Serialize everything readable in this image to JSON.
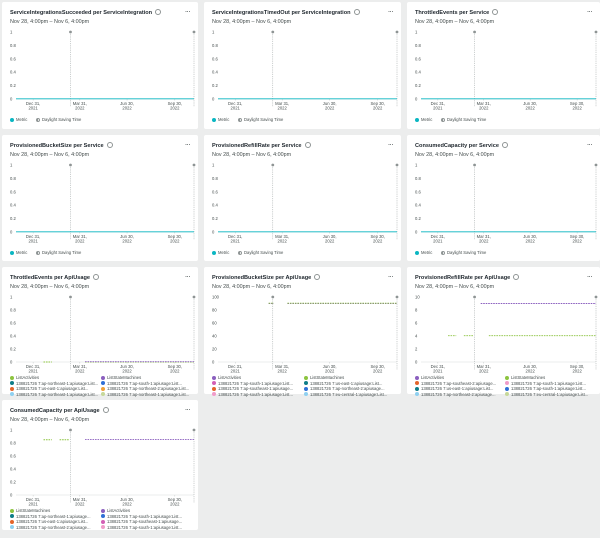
{
  "x_ticks": [
    {
      "lines": [
        "Dec 31,",
        "2021"
      ]
    },
    {
      "lines": [
        "Mar 31,",
        "2022"
      ]
    },
    {
      "lines": [
        "Jun 30,",
        "2022"
      ]
    },
    {
      "lines": [
        "Sep 30,",
        "2022"
      ]
    }
  ],
  "dst_label": "Daylight Saving Time",
  "menu_glyph": "...",
  "cards": [
    {
      "title": "ServiceIntegrationsSucceeded per ServiceIntegration",
      "subtitle": "Nov 28, 4:00pm – Nov 6, 4:00pm",
      "y_ticks": [
        "1",
        "0.8",
        "0.6",
        "0.4",
        "0.2",
        "0"
      ],
      "legend": [
        {
          "label": "Metric",
          "color": "#0ab6c2"
        }
      ],
      "show_dst": true
    },
    {
      "title": "ServiceIntegrationsTimedOut per ServiceIntegration",
      "subtitle": "Nov 28, 4:00pm – Nov 6, 4:00pm",
      "y_ticks": [
        "1",
        "0.8",
        "0.6",
        "0.4",
        "0.2",
        "0"
      ],
      "legend": [
        {
          "label": "Metric",
          "color": "#0ab6c2"
        }
      ],
      "show_dst": true
    },
    {
      "title": "ThrottledEvents per Service",
      "subtitle": "Nov 28, 4:00pm – Nov 6, 4:00pm",
      "y_ticks": [
        "1",
        "0.8",
        "0.6",
        "0.4",
        "0.2",
        "0"
      ],
      "legend": [
        {
          "label": "Metric",
          "color": "#0ab6c2"
        }
      ],
      "show_dst": true
    },
    {
      "title": "ProvisionedBucketSize per Service",
      "subtitle": "Nov 28, 4:00pm – Nov 6, 4:00pm",
      "y_ticks": [
        "1",
        "0.8",
        "0.6",
        "0.4",
        "0.2",
        "0"
      ],
      "legend": [
        {
          "label": "Metric",
          "color": "#0ab6c2"
        }
      ],
      "show_dst": true
    },
    {
      "title": "ProvisionedRefillRate per Service",
      "subtitle": "Nov 28, 4:00pm – Nov 6, 4:00pm",
      "y_ticks": [
        "1",
        "0.8",
        "0.6",
        "0.4",
        "0.2",
        "0"
      ],
      "legend": [
        {
          "label": "Metric",
          "color": "#0ab6c2"
        }
      ],
      "show_dst": true
    },
    {
      "title": "ConsumedCapacity per Service",
      "subtitle": "Nov 28, 4:00pm – Nov 6, 4:00pm",
      "y_ticks": [
        "1",
        "0.8",
        "0.6",
        "0.4",
        "0.2",
        "0"
      ],
      "legend": [
        {
          "label": "Metric",
          "color": "#0ab6c2"
        }
      ],
      "show_dst": true
    },
    {
      "title": "ThrottledEvents per ApiUsage",
      "subtitle": "Nov 28, 4:00pm – Nov 6, 4:00pm",
      "y_ticks": [
        "1",
        "0.8",
        "0.6",
        "0.4",
        "0.2",
        "0"
      ],
      "legend": [
        {
          "label": "ListActivities",
          "color": "#8cc43f"
        },
        {
          "label": "ListStateMachines",
          "color": "#8b5fbf"
        },
        {
          "label": "138821726 7:ap-northeast-1:apiusage:List...",
          "color": "#0e7d88"
        },
        {
          "label": "138821726 7:ap-south-1:apiusage:List...",
          "color": "#2f6fd6"
        },
        {
          "label": "138821726 7:us-east-1:apiusage:List...",
          "color": "#e4652b"
        },
        {
          "label": "138821726 7:ap-northeast-2:apiusage:List...",
          "color": "#f0a13a"
        },
        {
          "label": "138821726 7:ap-northeast-1:apiusage:List...",
          "color": "#8fd0f0"
        },
        {
          "label": "138821726 7:ap-northeast-1:apiusage:List...",
          "color": "#c6d89a"
        }
      ],
      "show_dst": false
    },
    {
      "title": "ProvisionedBucketSize per ApiUsage",
      "subtitle": "Nov 28, 4:00pm – Nov 6, 4:00pm",
      "y_ticks": [
        "100",
        "80",
        "60",
        "40",
        "20",
        "0"
      ],
      "legend": [
        {
          "label": "ListActivities",
          "color": "#8b5fbf"
        },
        {
          "label": "ListStateMachines",
          "color": "#8cc43f"
        },
        {
          "label": "138821726 7:ap-south-1:apiusage:List...",
          "color": "#d35fb5"
        },
        {
          "label": "138821726 7:us-east-1:apiusage:List...",
          "color": "#0e7d88"
        },
        {
          "label": "138821726 7:ap-southeast-1:apiusage...",
          "color": "#e4652b"
        },
        {
          "label": "138821726 7:ap-northeast-2:apiusage...",
          "color": "#2f6fd6"
        },
        {
          "label": "138821726 7:ap-south-1:apiusage:List...",
          "color": "#f09cc9"
        },
        {
          "label": "138821726 7:eu-central-1:apiusage:List...",
          "color": "#8fd0f0"
        }
      ],
      "show_dst": false
    },
    {
      "title": "ProvisionedRefillRate per ApiUsage",
      "subtitle": "Nov 28, 4:00pm – Nov 6, 4:00pm",
      "y_ticks": [
        "10",
        "8",
        "6",
        "4",
        "2",
        "0"
      ],
      "legend": [
        {
          "label": "ListActivities",
          "color": "#8b5fbf"
        },
        {
          "label": "ListStateMachines",
          "color": "#8cc43f"
        },
        {
          "label": "138821726 7:ap-southeast-2:apiusage...",
          "color": "#e4652b"
        },
        {
          "label": "138821726 7:ap-south-1:apiusage:List...",
          "color": "#f09cc9"
        },
        {
          "label": "138821726 7:us-east-1:apiusage:List...",
          "color": "#0e7d88"
        },
        {
          "label": "138821726 7:ap-south-1:apiusage:List...",
          "color": "#2f6fd6"
        },
        {
          "label": "138821726 7:ap-northeast-2:apiusage...",
          "color": "#8fd0f0"
        },
        {
          "label": "138821726 7:eu-central-1:apiusage:List...",
          "color": "#c6d89a"
        }
      ],
      "show_dst": false
    },
    {
      "title": "ConsumedCapacity per ApiUsage",
      "subtitle": "Nov 28, 4:00pm – Nov 6, 4:00pm",
      "y_ticks": [
        "1",
        "0.8",
        "0.6",
        "0.4",
        "0.2",
        "0"
      ],
      "legend": [
        {
          "label": "ListStateMachines",
          "color": "#8cc43f"
        },
        {
          "label": "ListActivities",
          "color": "#8b5fbf"
        },
        {
          "label": "138821726 7:ap-northeast-1:apiusage...",
          "color": "#0e7d88"
        },
        {
          "label": "138821726 7:ap-south-1:apiusage:List...",
          "color": "#2f6fd6"
        },
        {
          "label": "138821726 7:us-east-1:apiusage:List...",
          "color": "#e4652b"
        },
        {
          "label": "138821726 7:ap-southeast-1:apiusage...",
          "color": "#d35fb5"
        },
        {
          "label": "138821726 7:ap-northeast-2:apiusage...",
          "color": "#8fd0f0"
        },
        {
          "label": "138821726 7:ap-south-1:apiusage:List...",
          "color": "#f09cc9"
        }
      ],
      "show_dst": false
    }
  ],
  "chart_data": [
    {
      "type": "line",
      "title": "ServiceIntegrationsSucceeded per ServiceIntegration",
      "ylim": [
        0,
        1
      ],
      "series": [
        {
          "name": "Metric",
          "x": [
            "2021-11-28",
            "2022-11-06"
          ],
          "y": [
            0,
            0
          ]
        }
      ]
    },
    {
      "type": "line",
      "title": "ServiceIntegrationsTimedOut per ServiceIntegration",
      "ylim": [
        0,
        1
      ],
      "series": [
        {
          "name": "Metric",
          "x": [
            "2021-11-28",
            "2022-11-06"
          ],
          "y": [
            0,
            0
          ]
        }
      ]
    },
    {
      "type": "line",
      "title": "ThrottledEvents per Service",
      "ylim": [
        0,
        1
      ],
      "series": [
        {
          "name": "Metric",
          "x": [
            "2021-11-28",
            "2022-11-06"
          ],
          "y": [
            0,
            0
          ]
        }
      ]
    },
    {
      "type": "line",
      "title": "ProvisionedBucketSize per Service",
      "ylim": [
        0,
        1
      ],
      "series": [
        {
          "name": "Metric",
          "x": [
            "2021-11-28",
            "2022-11-06"
          ],
          "y": [
            0,
            0
          ]
        }
      ]
    },
    {
      "type": "line",
      "title": "ProvisionedRefillRate per Service",
      "ylim": [
        0,
        1
      ],
      "series": [
        {
          "name": "Metric",
          "x": [
            "2021-11-28",
            "2022-11-06"
          ],
          "y": [
            0,
            0
          ]
        }
      ]
    },
    {
      "type": "line",
      "title": "ConsumedCapacity per Service",
      "ylim": [
        0,
        1
      ],
      "series": [
        {
          "name": "Metric",
          "x": [
            "2021-11-28",
            "2022-11-06"
          ],
          "y": [
            0,
            0
          ]
        }
      ]
    },
    {
      "type": "line",
      "title": "ThrottledEvents per ApiUsage",
      "ylim": [
        0,
        1
      ],
      "series": [
        {
          "name": "ListActivities",
          "segments": [
            [
              "2022-01-20",
              "2022-02-05",
              0
            ],
            [
              "2022-04-10",
              "2022-11-06",
              0
            ]
          ]
        },
        {
          "name": "ListStateMachines",
          "segments": [
            [
              "2022-04-10",
              "2022-11-06",
              0
            ]
          ]
        }
      ]
    },
    {
      "type": "line",
      "title": "ProvisionedBucketSize per ApiUsage",
      "ylim": [
        0,
        100
      ],
      "series": [
        {
          "name": "ListActivities",
          "segments": [
            [
              "2022-03-05",
              "2022-03-15",
              90
            ],
            [
              "2022-04-10",
              "2022-11-06",
              90
            ]
          ]
        },
        {
          "name": "ListStateMachines",
          "segments": [
            [
              "2022-03-05",
              "2022-03-15",
              90
            ],
            [
              "2022-04-10",
              "2022-11-06",
              90
            ]
          ]
        }
      ]
    },
    {
      "type": "line",
      "title": "ProvisionedRefillRate per ApiUsage",
      "ylim": [
        0,
        10
      ],
      "series": [
        {
          "name": "ListActivities",
          "segments": [
            [
              "2022-03-25",
              "2022-11-06",
              9
            ]
          ]
        },
        {
          "name": "ListStateMachines",
          "segments": [
            [
              "2022-01-20",
              "2022-02-05",
              4
            ],
            [
              "2022-02-20",
              "2022-03-10",
              4
            ],
            [
              "2022-04-10",
              "2022-11-06",
              4
            ]
          ]
        }
      ]
    },
    {
      "type": "line",
      "title": "ConsumedCapacity per ApiUsage",
      "ylim": [
        0,
        1
      ],
      "series": [
        {
          "name": "ListStateMachines",
          "segments": [
            [
              "2022-01-20",
              "2022-02-05",
              0.85
            ],
            [
              "2022-02-20",
              "2022-03-10",
              0.85
            ]
          ]
        },
        {
          "name": "ListActivities",
          "segments": [
            [
              "2022-04-10",
              "2022-11-06",
              0.85
            ]
          ]
        }
      ]
    }
  ]
}
